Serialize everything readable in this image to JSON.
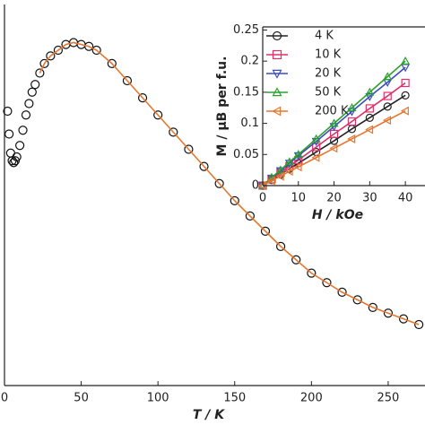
{
  "chart_data": [
    {
      "type": "scatter",
      "x_label": "T / K",
      "x": [
        2,
        3,
        4,
        5,
        6,
        7,
        8,
        10,
        12,
        14,
        16,
        18,
        20,
        23,
        26,
        30,
        35,
        40,
        45,
        50,
        55,
        60,
        70,
        80,
        90,
        100,
        110,
        120,
        130,
        140,
        150,
        160,
        170,
        180,
        190,
        200,
        210,
        220,
        230,
        240,
        250,
        260,
        270
      ],
      "series": [
        {
          "color": "#111111",
          "marker": "circle",
          "line": false,
          "values": [
            0.72,
            0.66,
            0.61,
            0.59,
            0.585,
            0.59,
            0.6,
            0.63,
            0.67,
            0.71,
            0.74,
            0.77,
            0.79,
            0.82,
            0.845,
            0.865,
            0.88,
            0.895,
            0.9,
            0.895,
            0.89,
            0.88,
            0.845,
            0.8,
            0.755,
            0.71,
            0.665,
            0.62,
            0.575,
            0.53,
            0.485,
            0.445,
            0.405,
            0.365,
            0.33,
            0.295,
            0.27,
            0.245,
            0.225,
            0.205,
            0.19,
            0.175,
            0.16
          ]
        },
        {
          "color": "#e6772e",
          "marker": "none",
          "line": true,
          "values": [
            null,
            null,
            null,
            null,
            null,
            null,
            null,
            null,
            null,
            null,
            null,
            null,
            null,
            0.82,
            0.845,
            0.865,
            0.88,
            0.895,
            0.9,
            0.895,
            0.89,
            0.88,
            0.845,
            0.8,
            0.755,
            0.71,
            0.665,
            0.62,
            0.575,
            0.53,
            0.485,
            0.445,
            0.405,
            0.365,
            0.33,
            0.295,
            0.27,
            0.245,
            0.225,
            0.205,
            0.19,
            0.175,
            0.16
          ]
        }
      ],
      "xlim": [
        0,
        274
      ],
      "xticks": [
        0,
        50,
        100,
        150,
        200,
        250
      ],
      "ylim": [
        0,
        1
      ]
    },
    {
      "type": "scatter",
      "x_label": "H / kOe",
      "y_label": "M / μB per f.u.",
      "x": [
        0,
        2.5,
        5,
        7.5,
        10,
        15,
        20,
        25,
        30,
        35,
        40
      ],
      "series": [
        {
          "name": "4 K",
          "color": "#222222",
          "marker": "circle",
          "line": true,
          "values": [
            0,
            0.009,
            0.018,
            0.027,
            0.036,
            0.054,
            0.072,
            0.091,
            0.109,
            0.127,
            0.145
          ]
        },
        {
          "name": "10 K",
          "color": "#e0306a",
          "marker": "square",
          "line": true,
          "values": [
            0,
            0.01,
            0.021,
            0.031,
            0.041,
            0.062,
            0.083,
            0.103,
            0.124,
            0.144,
            0.165
          ]
        },
        {
          "name": "20 K",
          "color": "#3b4cc0",
          "marker": "triangle-down",
          "line": true,
          "values": [
            0,
            0.012,
            0.024,
            0.036,
            0.048,
            0.071,
            0.095,
            0.119,
            0.143,
            0.166,
            0.19
          ]
        },
        {
          "name": "50 K",
          "color": "#2ca02c",
          "marker": "triangle-up",
          "line": true,
          "values": [
            0,
            0.013,
            0.025,
            0.038,
            0.05,
            0.075,
            0.1,
            0.125,
            0.15,
            0.175,
            0.2
          ]
        },
        {
          "name": "200 K",
          "color": "#e6772e",
          "marker": "triangle-left",
          "line": true,
          "values": [
            0,
            0.008,
            0.015,
            0.023,
            0.03,
            0.045,
            0.06,
            0.075,
            0.09,
            0.105,
            0.12
          ]
        }
      ],
      "xlim": [
        0,
        45.5
      ],
      "xticks": [
        0,
        10,
        20,
        30,
        40
      ],
      "ylim": [
        0,
        0.255
      ],
      "yticks": [
        0,
        0.05,
        0.1,
        0.15,
        0.2,
        0.25
      ],
      "legend": "upper left"
    }
  ]
}
